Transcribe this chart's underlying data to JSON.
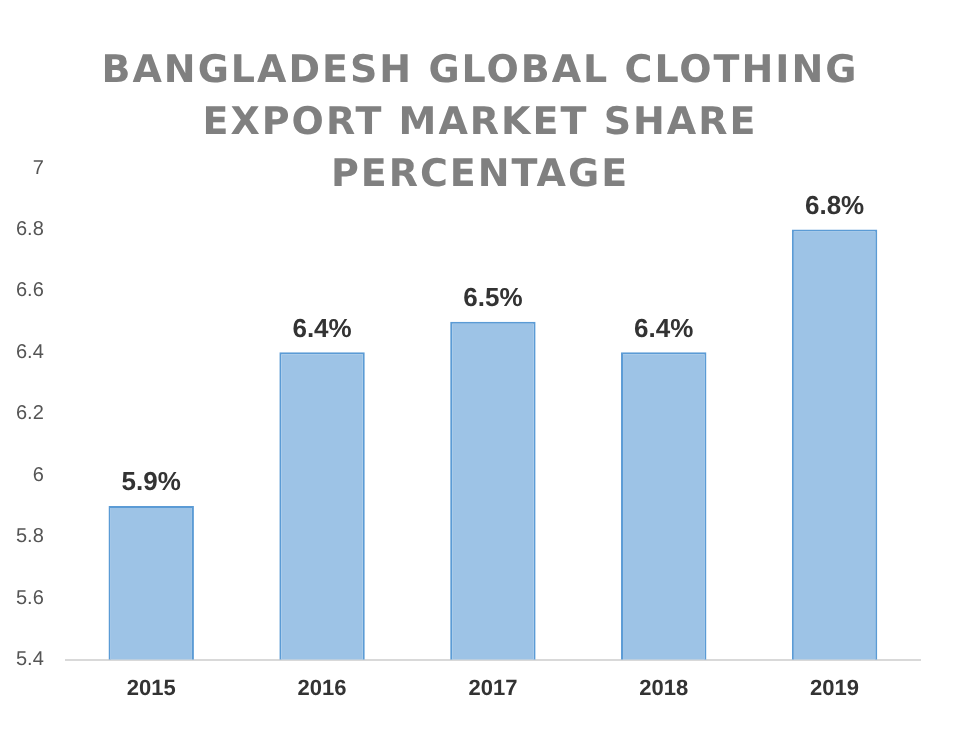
{
  "chart_data": {
    "type": "bar",
    "title": "BANGLADESH GLOBAL CLOTHING EXPORT MARKET SHARE PERCENTAGE",
    "categories": [
      "2015",
      "2016",
      "2017",
      "2018",
      "2019"
    ],
    "values": [
      5.9,
      6.4,
      6.5,
      6.4,
      6.8
    ],
    "value_labels": [
      "5.9%",
      "6.4%",
      "6.5%",
      "6.4%",
      "6.8%"
    ],
    "color": "#9dc3e6",
    "ylim": [
      5.4,
      7
    ],
    "yticks": [
      5.4,
      5.6,
      5.8,
      6,
      6.2,
      6.4,
      6.6,
      6.8,
      7
    ],
    "grid": false,
    "legend": false
  }
}
